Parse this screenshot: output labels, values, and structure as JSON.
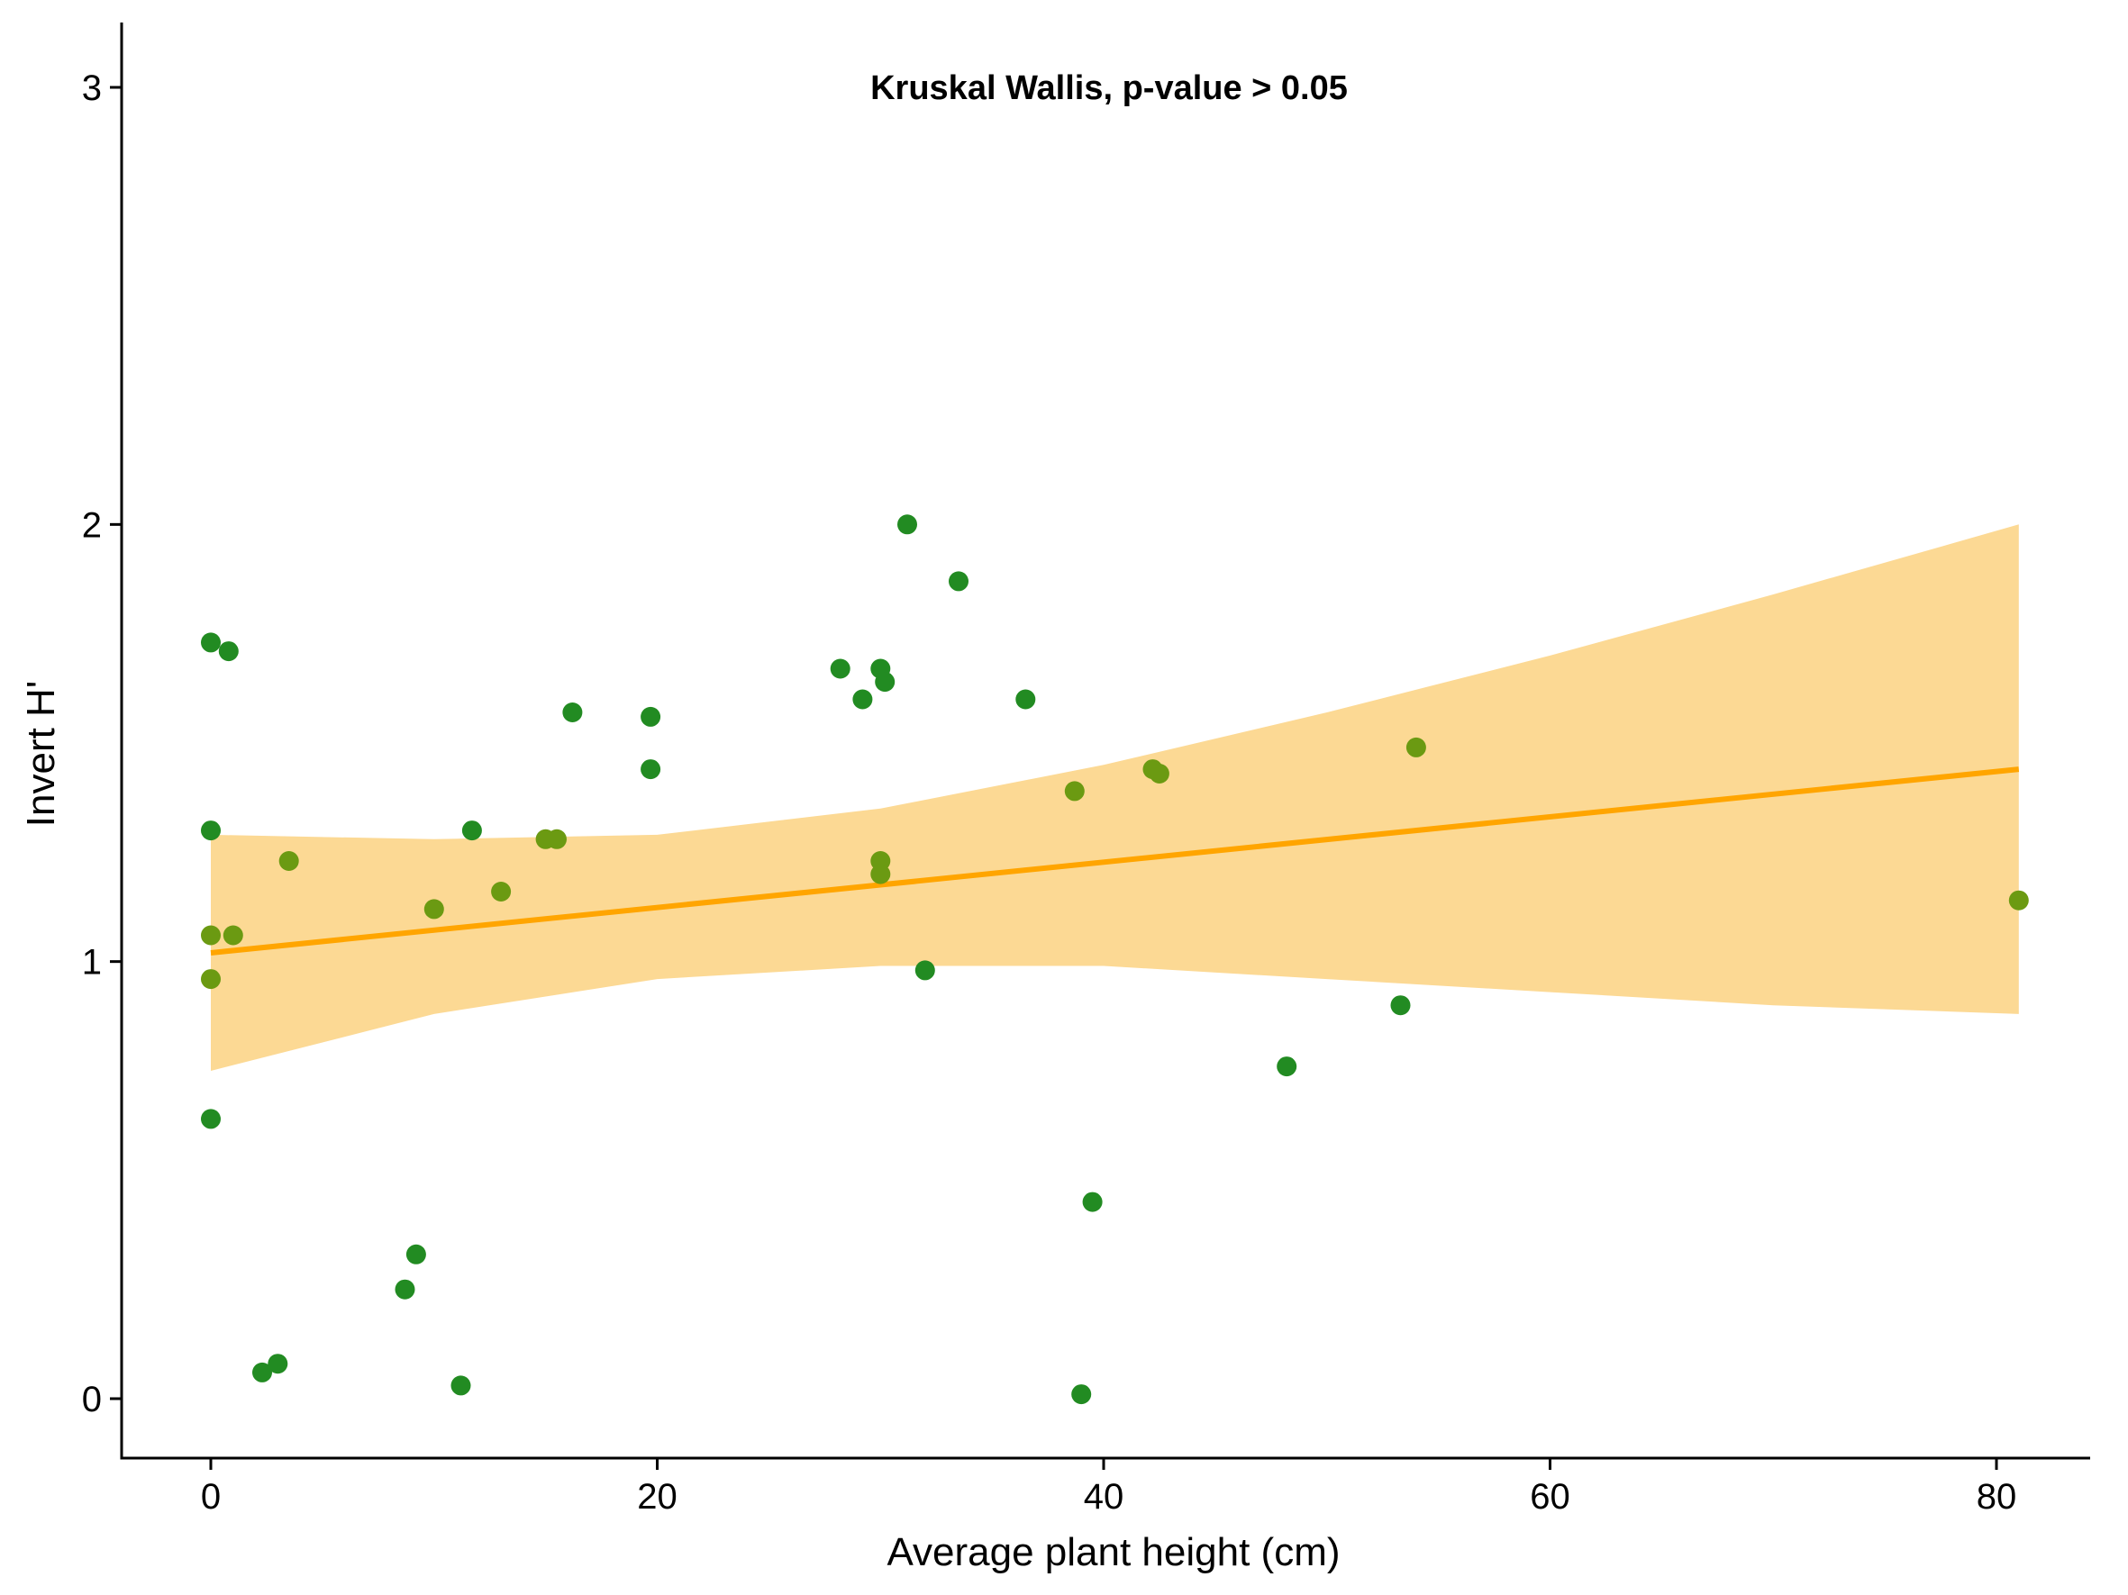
{
  "chart_data": {
    "type": "scatter",
    "annotation": "Kruskal Wallis, p-value > 0.05",
    "xlabel": "Average plant height (cm)",
    "ylabel": "Invert H'",
    "xlim": [
      -5,
      84
    ],
    "ylim": [
      -0.13,
      3.15
    ],
    "x_ticks": [
      0,
      20,
      40,
      60,
      80
    ],
    "y_ticks": [
      0,
      1,
      2,
      3
    ],
    "x_tick_labels": [
      "0",
      "20",
      "40",
      "60",
      "80"
    ],
    "y_tick_labels": [
      "0",
      "1",
      "2",
      "3"
    ],
    "grid": false,
    "legend": "none",
    "colors": {
      "points": "#228b22",
      "points_in_band": "#6b9a12",
      "trend_line": "#ffa500",
      "confidence_band": "#fcd994"
    },
    "points": [
      {
        "x": 0,
        "y": 1.73
      },
      {
        "x": 0.8,
        "y": 1.71
      },
      {
        "x": 0,
        "y": 1.3
      },
      {
        "x": 0,
        "y": 1.06
      },
      {
        "x": 1.0,
        "y": 1.06
      },
      {
        "x": 0,
        "y": 0.96
      },
      {
        "x": 0,
        "y": 0.64
      },
      {
        "x": 3.5,
        "y": 1.23
      },
      {
        "x": 2.3,
        "y": 0.06
      },
      {
        "x": 3.0,
        "y": 0.08
      },
      {
        "x": 8.7,
        "y": 0.25
      },
      {
        "x": 9.2,
        "y": 0.33
      },
      {
        "x": 10.0,
        "y": 1.12
      },
      {
        "x": 11.2,
        "y": 0.03
      },
      {
        "x": 11.7,
        "y": 1.3
      },
      {
        "x": 13.0,
        "y": 1.16
      },
      {
        "x": 15.0,
        "y": 1.28
      },
      {
        "x": 15.5,
        "y": 1.28
      },
      {
        "x": 16.2,
        "y": 1.57
      },
      {
        "x": 19.7,
        "y": 1.56
      },
      {
        "x": 19.7,
        "y": 1.44
      },
      {
        "x": 28.2,
        "y": 1.67
      },
      {
        "x": 29.2,
        "y": 1.6
      },
      {
        "x": 30.0,
        "y": 1.67
      },
      {
        "x": 30.2,
        "y": 1.64
      },
      {
        "x": 30.0,
        "y": 1.23
      },
      {
        "x": 30.0,
        "y": 1.2
      },
      {
        "x": 31.2,
        "y": 2.0
      },
      {
        "x": 32.0,
        "y": 0.98
      },
      {
        "x": 33.5,
        "y": 1.87
      },
      {
        "x": 36.5,
        "y": 1.6
      },
      {
        "x": 38.7,
        "y": 1.39
      },
      {
        "x": 39.0,
        "y": 0.01
      },
      {
        "x": 39.5,
        "y": 0.45
      },
      {
        "x": 42.2,
        "y": 1.44
      },
      {
        "x": 42.5,
        "y": 1.43
      },
      {
        "x": 48.2,
        "y": 0.76
      },
      {
        "x": 53.3,
        "y": 0.9
      },
      {
        "x": 54.0,
        "y": 1.49
      },
      {
        "x": 81.0,
        "y": 1.14
      }
    ],
    "trend_line": {
      "x": [
        0,
        81
      ],
      "y": [
        1.02,
        1.44
      ]
    },
    "confidence_band": {
      "x": [
        0,
        10,
        20,
        30,
        40,
        50,
        60,
        70,
        81
      ],
      "upper": [
        1.29,
        1.28,
        1.29,
        1.35,
        1.45,
        1.57,
        1.7,
        1.84,
        2.0
      ],
      "lower": [
        0.75,
        0.88,
        0.96,
        0.99,
        0.99,
        0.96,
        0.93,
        0.9,
        0.88
      ]
    }
  }
}
